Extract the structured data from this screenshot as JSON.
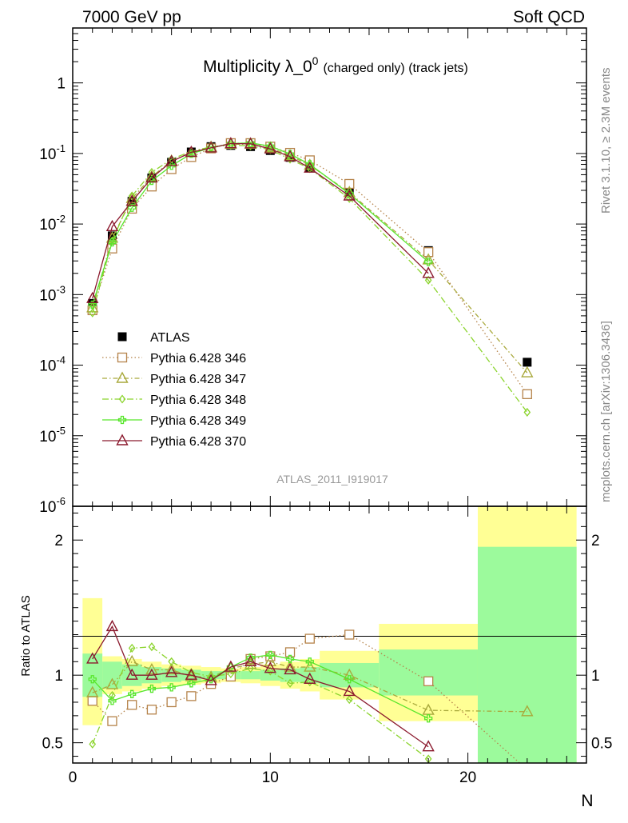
{
  "header": {
    "left": "7000 GeV pp",
    "right": "Soft QCD"
  },
  "side_labels": {
    "rivet": "Rivet 3.1.10, ≥ 2.3M events",
    "mcplots": "mcplots.cern.ch [arXiv:1306.3436]"
  },
  "analysis_id": "ATLAS_2011_I919017",
  "chart_data": [
    {
      "type": "scatter",
      "panel": "main",
      "title": "Multiplicity λ_0^0 (charged only) (track jets)",
      "title_main": "Multiplicity λ_0",
      "title_sup": "0",
      "title_sub": "(charged only) (track jets)",
      "xlabel": "N",
      "ylabel": "",
      "xlim": [
        0,
        26
      ],
      "ylim": [
        1e-06,
        6
      ],
      "yscale": "log",
      "x_ticks": [
        "0",
        "10",
        "20"
      ],
      "y_ticks": [
        {
          "base": "10",
          "exp": "-6"
        },
        {
          "base": "10",
          "exp": "-5"
        },
        {
          "base": "10",
          "exp": "-4"
        },
        {
          "base": "10",
          "exp": "-3"
        },
        {
          "base": "10",
          "exp": "-2"
        },
        {
          "base": "10",
          "exp": "-1"
        },
        {
          "base": "1",
          "exp": ""
        }
      ],
      "legend_position": "middle-left",
      "series": [
        {
          "name": "ATLAS",
          "color": "#000000",
          "marker": "filled-square",
          "dash": "none",
          "x": [
            1,
            2,
            3,
            4,
            5,
            6,
            7,
            8,
            9,
            10,
            11,
            12,
            14,
            18,
            23
          ],
          "y": [
            0.00075,
            0.0068,
            0.021,
            0.045,
            0.075,
            0.105,
            0.125,
            0.13,
            0.125,
            0.11,
            0.088,
            0.064,
            0.028,
            0.0042,
            0.00011
          ]
        },
        {
          "name": "Pythia 6.428 346",
          "color": "#b5834a",
          "marker": "open-square",
          "dash": "1.5,3",
          "x": [
            1,
            2,
            3,
            4,
            5,
            6,
            7,
            8,
            9,
            10,
            11,
            12,
            14,
            18,
            23
          ],
          "y": [
            0.0006,
            0.0045,
            0.0165,
            0.034,
            0.06,
            0.089,
            0.118,
            0.14,
            0.14,
            0.125,
            0.102,
            0.08,
            0.037,
            0.004,
            3.88e-05
          ]
        },
        {
          "name": "Pythia 6.428 347",
          "color": "#a9a93c",
          "marker": "open-triangle",
          "dash": "6,3,1.5,3",
          "x": [
            1,
            2,
            3,
            4,
            5,
            6,
            7,
            8,
            9,
            10,
            11,
            12,
            14,
            18,
            23
          ],
          "y": [
            0.00065,
            0.0063,
            0.023,
            0.047,
            0.078,
            0.103,
            0.123,
            0.135,
            0.135,
            0.12,
            0.093,
            0.068,
            0.028,
            0.0031,
            7.8e-05
          ]
        },
        {
          "name": "Pythia 6.428 348",
          "color": "#8bd42d",
          "marker": "open-diamond",
          "dash": "8,3,1.5,3",
          "x": [
            1,
            2,
            3,
            4,
            5,
            6,
            7,
            8,
            9,
            10,
            11,
            12,
            14,
            18,
            23
          ],
          "y": [
            0.00055,
            0.0058,
            0.025,
            0.054,
            0.083,
            0.107,
            0.124,
            0.131,
            0.128,
            0.113,
            0.083,
            0.061,
            0.023,
            0.0016,
            2.15e-05
          ]
        },
        {
          "name": "Pythia 6.428 349",
          "color": "#57e62b",
          "marker": "open-cross",
          "dash": "none",
          "x": [
            1,
            2,
            3,
            4,
            5,
            6,
            7,
            8,
            9,
            10,
            11,
            12,
            14,
            18
          ],
          "y": [
            0.00072,
            0.0055,
            0.017,
            0.041,
            0.067,
            0.099,
            0.121,
            0.138,
            0.141,
            0.127,
            0.098,
            0.07,
            0.027,
            0.0029
          ]
        },
        {
          "name": "Pythia 6.428 370",
          "color": "#8b1a2e",
          "marker": "open-triangle",
          "dash": "none",
          "x": [
            1,
            2,
            3,
            4,
            5,
            6,
            7,
            8,
            9,
            10,
            11,
            12,
            14,
            18
          ],
          "y": [
            0.00088,
            0.0092,
            0.021,
            0.045,
            0.077,
            0.104,
            0.12,
            0.138,
            0.137,
            0.116,
            0.09,
            0.062,
            0.025,
            0.002
          ]
        }
      ]
    },
    {
      "type": "scatter",
      "panel": "ratio",
      "xlabel": "N",
      "ylabel": "Ratio to ATLAS",
      "xlim": [
        0,
        26
      ],
      "ylim": [
        0.35,
        2.25
      ],
      "x_ticks": [
        "0",
        "10",
        "20"
      ],
      "y_ticks": [
        "0.5",
        "1",
        "2"
      ],
      "bands": [
        {
          "x": [
            0.5,
            1.5
          ],
          "inner": [
            0.84,
            1.16
          ],
          "outer": [
            0.63,
            1.57
          ]
        },
        {
          "x": [
            1.5,
            2.5
          ],
          "inner": [
            0.9,
            1.1
          ],
          "outer": [
            0.86,
            1.14
          ]
        },
        {
          "x": [
            2.5,
            3.5
          ],
          "inner": [
            0.92,
            1.08
          ],
          "outer": [
            0.88,
            1.12
          ]
        },
        {
          "x": [
            3.5,
            4.5
          ],
          "inner": [
            0.94,
            1.06
          ],
          "outer": [
            0.9,
            1.1
          ]
        },
        {
          "x": [
            4.5,
            5.5
          ],
          "inner": [
            0.95,
            1.05
          ],
          "outer": [
            0.92,
            1.08
          ]
        },
        {
          "x": [
            5.5,
            6.5
          ],
          "inner": [
            0.96,
            1.04
          ],
          "outer": [
            0.93,
            1.07
          ]
        },
        {
          "x": [
            6.5,
            7.5
          ],
          "inner": [
            0.97,
            1.03
          ],
          "outer": [
            0.94,
            1.06
          ]
        },
        {
          "x": [
            7.5,
            8.5
          ],
          "inner": [
            0.97,
            1.03
          ],
          "outer": [
            0.95,
            1.05
          ]
        },
        {
          "x": [
            8.5,
            9.5
          ],
          "inner": [
            0.97,
            1.03
          ],
          "outer": [
            0.94,
            1.06
          ]
        },
        {
          "x": [
            9.5,
            10.5
          ],
          "inner": [
            0.96,
            1.04
          ],
          "outer": [
            0.92,
            1.08
          ]
        },
        {
          "x": [
            10.5,
            11.5
          ],
          "inner": [
            0.95,
            1.05
          ],
          "outer": [
            0.9,
            1.1
          ]
        },
        {
          "x": [
            11.5,
            12.5
          ],
          "inner": [
            0.94,
            1.06
          ],
          "outer": [
            0.88,
            1.12
          ]
        },
        {
          "x": [
            12.5,
            15.5
          ],
          "inner": [
            0.91,
            1.09
          ],
          "outer": [
            0.82,
            1.18
          ]
        },
        {
          "x": [
            15.5,
            20.5
          ],
          "inner": [
            0.85,
            1.19
          ],
          "outer": [
            0.66,
            1.38
          ]
        },
        {
          "x": [
            20.5,
            25.5
          ],
          "inner": [
            0.3,
            1.95
          ],
          "outer": [
            0.3,
            2.4
          ]
        }
      ],
      "series": [
        {
          "name": "Pythia 6.428 346",
          "color": "#b5834a",
          "marker": "open-square",
          "dash": "1.5,3",
          "x": [
            1,
            2,
            3,
            4,
            5,
            6,
            7,
            8,
            9,
            10,
            11,
            12,
            14,
            18,
            23
          ],
          "y": [
            0.81,
            0.66,
            0.78,
            0.745,
            0.8,
            0.845,
            0.935,
            0.99,
            1.12,
            1.14,
            1.17,
            1.27,
            1.3,
            0.955,
            0.3
          ]
        },
        {
          "name": "Pythia 6.428 347",
          "color": "#a9a93c",
          "marker": "open-triangle",
          "dash": "6,3,1.5,3",
          "x": [
            1,
            2,
            3,
            4,
            5,
            6,
            7,
            8,
            9,
            10,
            11,
            12,
            14,
            18,
            23
          ],
          "y": [
            0.87,
            0.93,
            1.1,
            1.04,
            1.04,
            0.99,
            0.985,
            1.05,
            1.08,
            1.1,
            1.06,
            1.06,
            1.0,
            0.74,
            0.73
          ]
        },
        {
          "name": "Pythia 6.428 348",
          "color": "#8bd42d",
          "marker": "open-diamond",
          "dash": "8,3,1.5,3",
          "x": [
            1,
            2,
            3,
            4,
            5,
            6,
            7,
            8,
            9,
            10,
            11,
            12,
            14,
            18
          ],
          "y": [
            0.49,
            0.85,
            1.2,
            1.21,
            1.1,
            1.02,
            0.99,
            1.01,
            1.05,
            1.03,
            0.94,
            0.95,
            0.82,
            0.38
          ]
        },
        {
          "name": "Pythia 6.428 349",
          "color": "#57e62b",
          "marker": "open-cross",
          "dash": "none",
          "x": [
            1,
            2,
            3,
            4,
            5,
            6,
            7,
            8,
            9,
            10,
            11,
            12,
            14,
            18
          ],
          "y": [
            0.97,
            0.81,
            0.86,
            0.9,
            0.91,
            0.94,
            0.97,
            1.06,
            1.13,
            1.15,
            1.12,
            1.1,
            0.97,
            0.68
          ]
        },
        {
          "name": "Pythia 6.428 370",
          "color": "#8b1a2e",
          "marker": "open-triangle",
          "dash": "none",
          "x": [
            1,
            2,
            3,
            4,
            5,
            6,
            7,
            8,
            9,
            10,
            11,
            12,
            14,
            18
          ],
          "y": [
            1.12,
            1.36,
            1.0,
            1.0,
            1.02,
            1.0,
            0.96,
            1.06,
            1.1,
            1.05,
            1.04,
            0.97,
            0.88,
            0.47
          ]
        }
      ]
    }
  ]
}
